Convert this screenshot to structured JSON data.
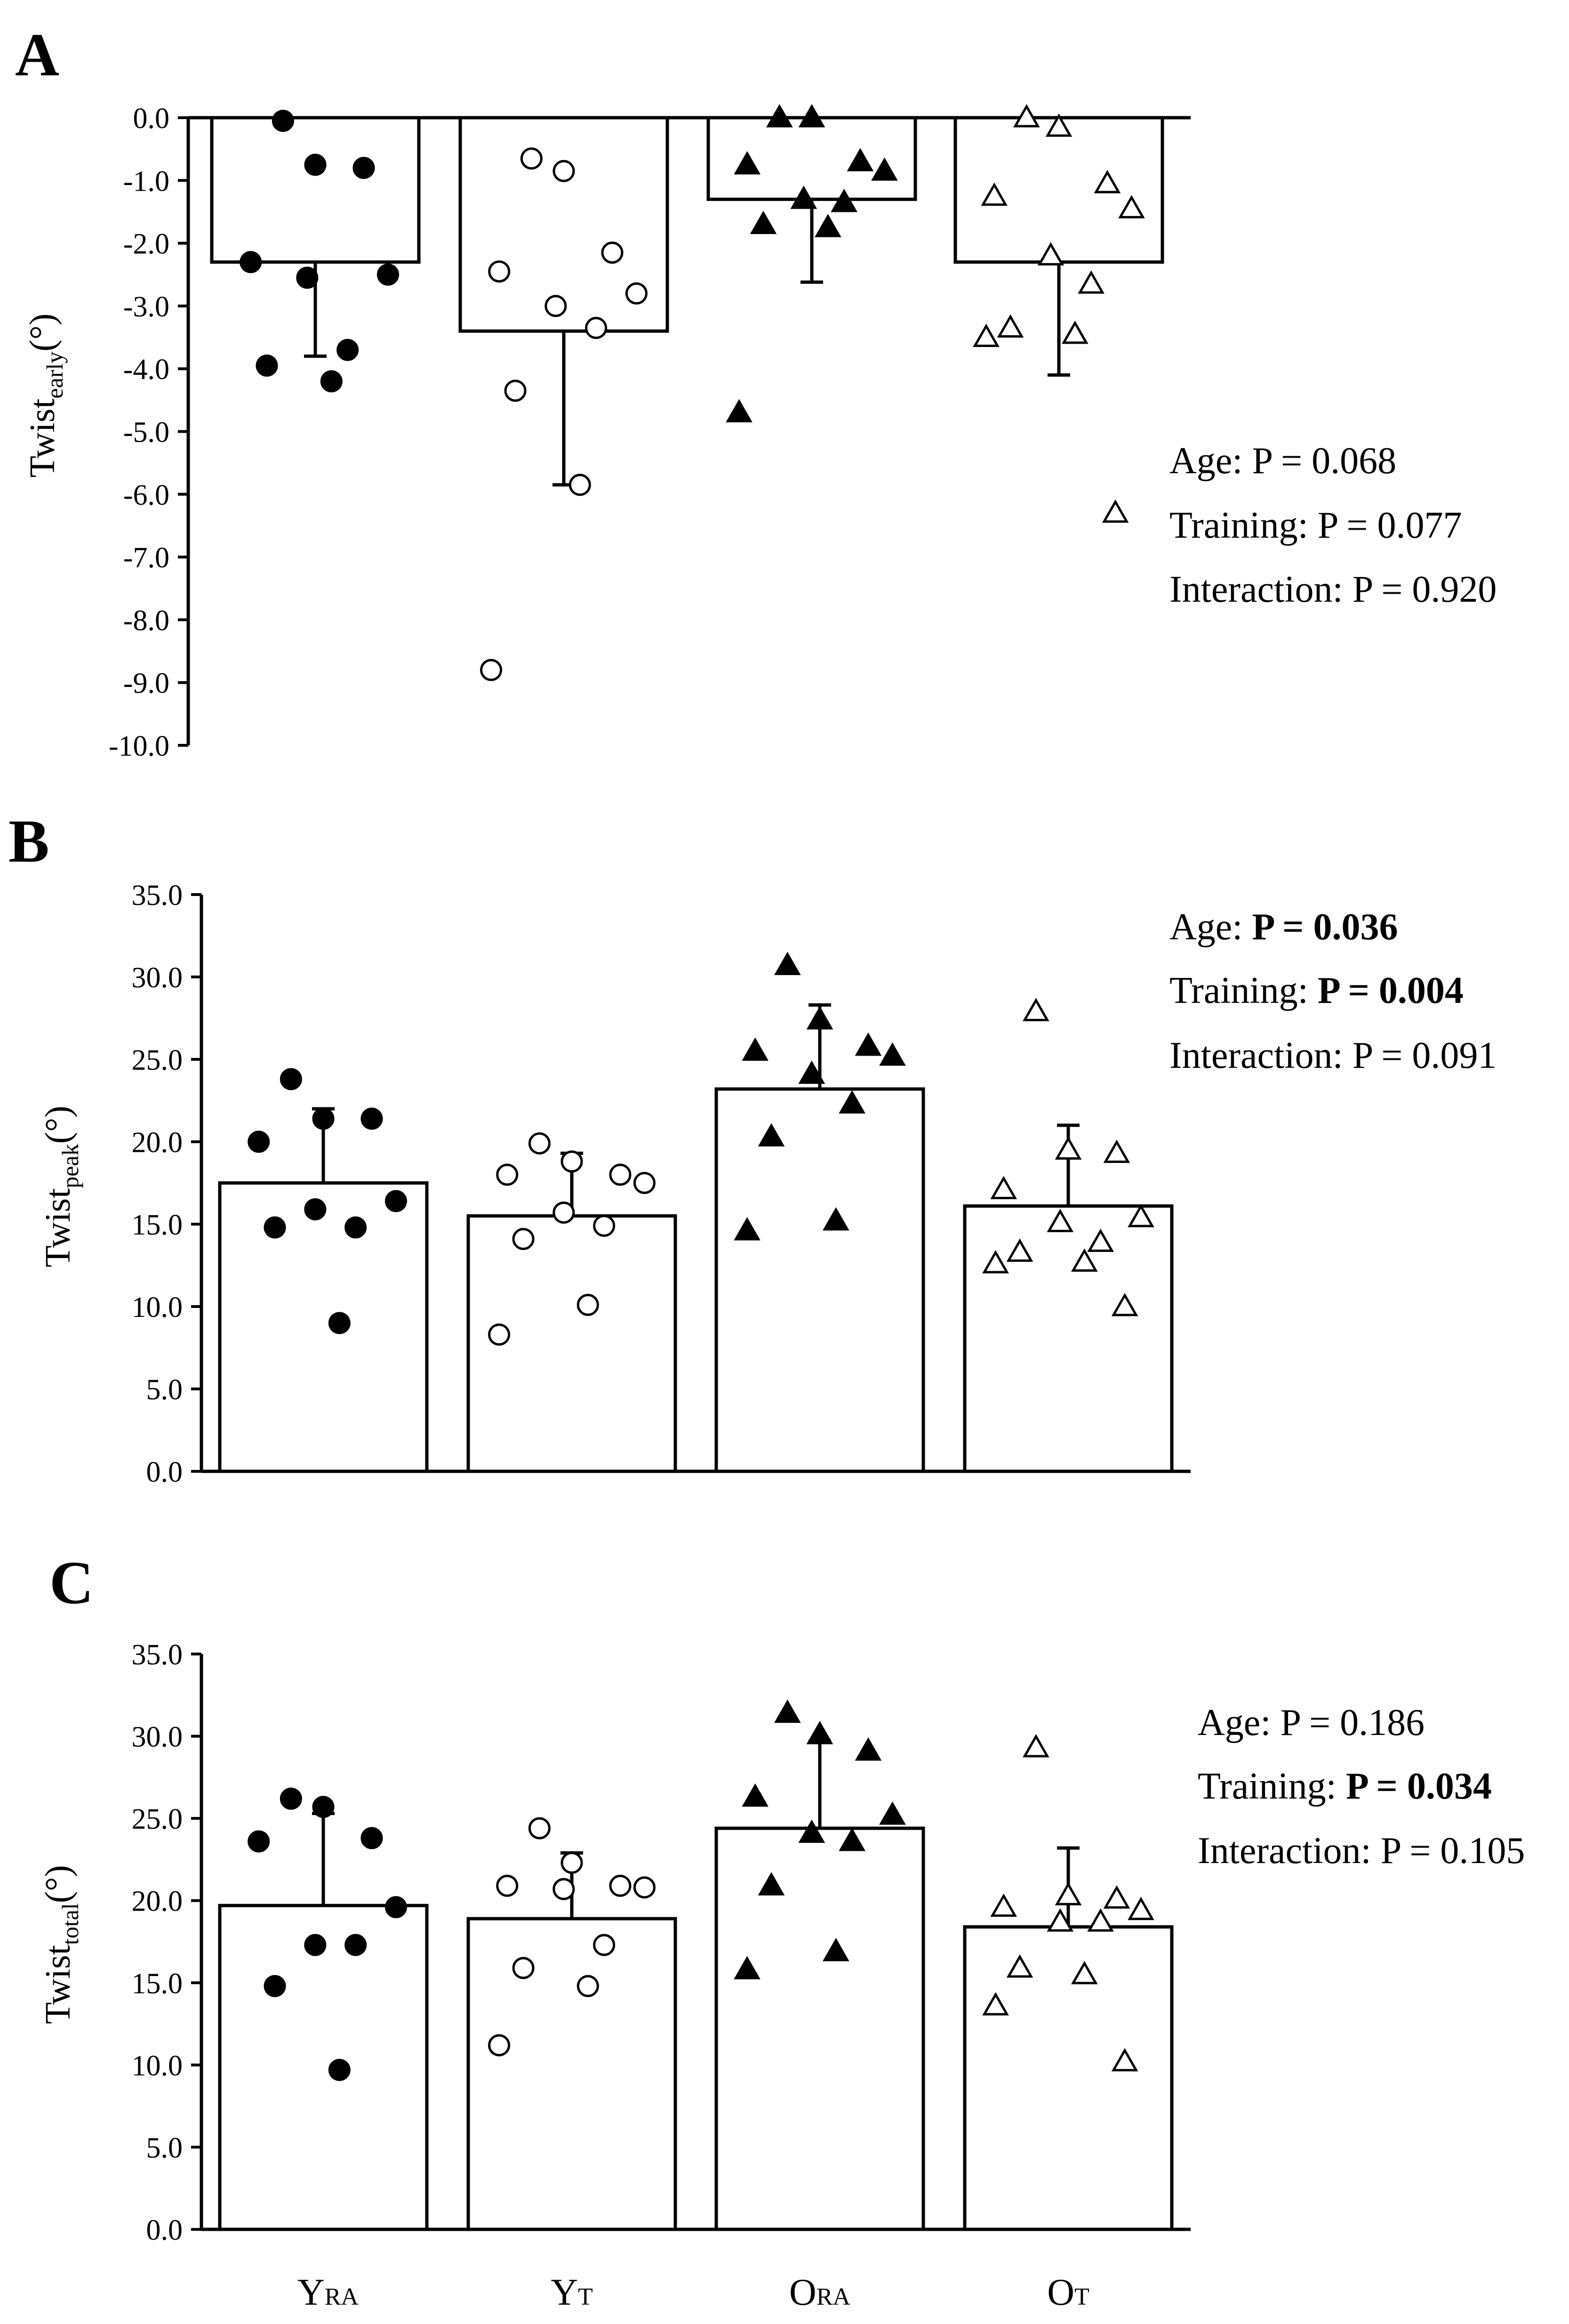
{
  "chart_data": [
    {
      "panel": "A",
      "type": "bar",
      "ylabel_main": "Twist",
      "ylabel_sub": "early",
      "ylabel_unit": "(°)",
      "ylim": [
        -10.0,
        0.0
      ],
      "yticks": [
        "0.0",
        "-1.0",
        "-2.0",
        "-3.0",
        "-4.0",
        "-5.0",
        "-6.0",
        "-7.0",
        "-8.0",
        "-9.0",
        "-10.0"
      ],
      "categories": [
        "YRA",
        "YT",
        "ORA",
        "OT"
      ],
      "means": [
        -2.3,
        -3.4,
        -1.3,
        -2.3
      ],
      "sd": [
        1.5,
        2.45,
        1.32,
        1.8
      ],
      "points": [
        [
          -0.05,
          -0.75,
          -0.8,
          -2.3,
          -2.5,
          -2.55,
          -3.7,
          -3.95,
          -4.2
        ],
        [
          -0.65,
          -0.85,
          -2.15,
          -2.45,
          -2.8,
          -3.0,
          -3.35,
          -4.35,
          -5.85,
          -8.8
        ],
        [
          0.0,
          0.0,
          -0.7,
          -0.75,
          -0.85,
          -1.3,
          -1.35,
          -1.7,
          -1.75,
          -4.7
        ],
        [
          0.0,
          -0.15,
          -1.05,
          -1.25,
          -1.45,
          -2.2,
          -2.65,
          -3.35,
          -3.45,
          -3.5,
          -6.3
        ]
      ],
      "stats": [
        {
          "label": "Age: ",
          "value": "P = 0.068",
          "bold": false
        },
        {
          "label": "Training: ",
          "value": "P = 0.077",
          "bold": false
        },
        {
          "label": "Interaction: ",
          "value": "P = 0.920",
          "bold": false
        }
      ]
    },
    {
      "panel": "B",
      "type": "bar",
      "ylabel_main": "Twist",
      "ylabel_sub": "peak",
      "ylabel_unit": "(°)",
      "ylim": [
        0.0,
        35.0
      ],
      "yticks": [
        "0.0",
        "5.0",
        "10.0",
        "15.0",
        "20.0",
        "25.0",
        "30.0",
        "35.0"
      ],
      "categories": [
        "YRA",
        "YT",
        "ORA",
        "OT"
      ],
      "means": [
        17.5,
        15.5,
        23.2,
        16.1
      ],
      "sd": [
        4.5,
        3.8,
        5.1,
        4.9
      ],
      "points": [
        [
          23.8,
          21.4,
          21.4,
          20.0,
          16.4,
          15.9,
          14.8,
          14.8,
          9.0
        ],
        [
          19.9,
          18.8,
          18.0,
          18.0,
          17.5,
          15.7,
          14.9,
          14.1,
          10.1,
          8.3
        ],
        [
          30.7,
          27.4,
          25.8,
          25.5,
          25.2,
          24.1,
          22.3,
          20.3,
          15.2,
          14.6
        ],
        [
          27.9,
          19.5,
          19.3,
          17.1,
          15.4,
          15.1,
          13.9,
          13.3,
          12.7,
          12.6,
          10.0
        ]
      ],
      "stats": [
        {
          "label": "Age: ",
          "value": "P = 0.036",
          "bold": true
        },
        {
          "label": "Training: ",
          "value": "P = 0.004",
          "bold": true
        },
        {
          "label": "Interaction: ",
          "value": "P = 0.091",
          "bold": false
        }
      ]
    },
    {
      "panel": "C",
      "type": "bar",
      "ylabel_main": "Twist",
      "ylabel_sub": "total",
      "ylabel_unit": "(°)",
      "ylim": [
        0.0,
        35.0
      ],
      "yticks": [
        "0.0",
        "5.0",
        "10.0",
        "15.0",
        "20.0",
        "25.0",
        "30.0",
        "35.0"
      ],
      "categories": [
        "YRA",
        "YT",
        "ORA",
        "OT"
      ],
      "category_main": [
        "Y",
        "Y",
        "O",
        "O"
      ],
      "category_sub": [
        "RA",
        "T",
        "RA",
        "T"
      ],
      "means": [
        19.7,
        18.9,
        24.4,
        18.4
      ],
      "sd": [
        5.6,
        4.0,
        5.3,
        4.8
      ],
      "points": [
        [
          26.2,
          25.7,
          23.8,
          23.6,
          19.6,
          17.3,
          17.3,
          14.8,
          9.7
        ],
        [
          24.4,
          22.3,
          20.9,
          20.9,
          20.8,
          20.7,
          17.3,
          15.9,
          14.8,
          11.2
        ],
        [
          31.4,
          30.1,
          29.1,
          26.3,
          25.2,
          24.1,
          23.6,
          20.9,
          16.9,
          15.8
        ],
        [
          29.3,
          20.3,
          20.1,
          19.6,
          19.4,
          18.7,
          18.7,
          15.9,
          15.5,
          13.6,
          10.2
        ]
      ],
      "stats": [
        {
          "label": "Age: ",
          "value": "P = 0.186",
          "bold": false
        },
        {
          "label": "Training: ",
          "value": "P = 0.034",
          "bold": true
        },
        {
          "label": "Interaction: ",
          "value": "P = 0.105",
          "bold": false
        }
      ]
    }
  ],
  "marker_styles": [
    "filled-circle",
    "open-circle",
    "filled-triangle",
    "open-triangle"
  ],
  "colors": {
    "ink": "#000000",
    "background": "#ffffff"
  }
}
